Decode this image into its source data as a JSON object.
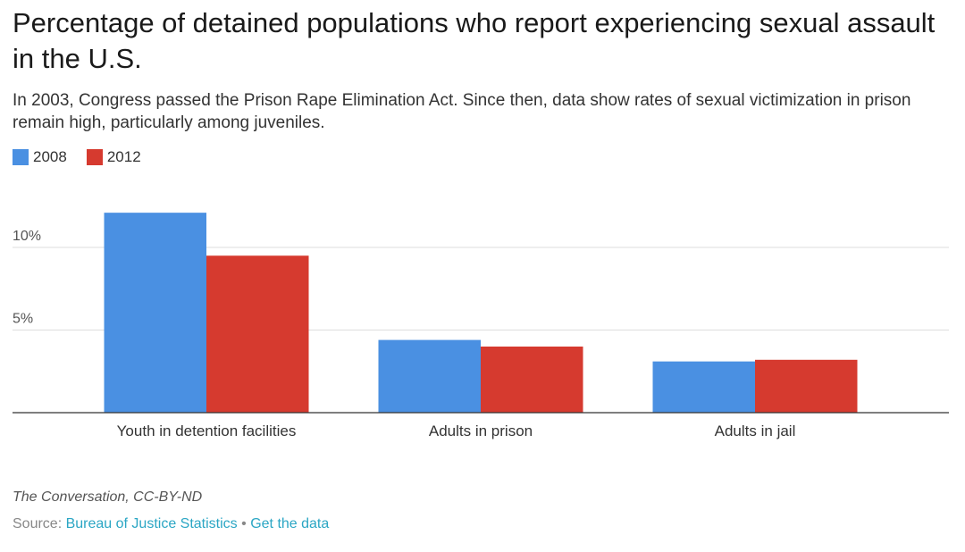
{
  "title": "Percentage of detained populations who report experiencing sexual assault in the U.S.",
  "subtitle": "In 2003, Congress passed the Prison Rape Elimination Act. Since then, data show rates of sexual victimization in prison remain high, particularly among juveniles.",
  "credit": "The Conversation, CC-BY-ND",
  "source": {
    "label": "Source:",
    "link": "Bureau of Justice Statistics",
    "separator": "•",
    "get_data": "Get the data"
  },
  "chart_data": {
    "type": "bar",
    "title": "Percentage of detained populations who report experiencing sexual assault in the U.S.",
    "xlabel": "",
    "ylabel": "",
    "categories": [
      "Youth in detention facilities",
      "Adults in prison",
      "Adults in jail"
    ],
    "series": [
      {
        "name": "2008",
        "color": "#4a90e2",
        "values": [
          12.1,
          4.4,
          3.1
        ]
      },
      {
        "name": "2012",
        "color": "#d63a2f",
        "values": [
          9.5,
          4.0,
          3.2
        ]
      }
    ],
    "yticks": [
      {
        "value": 5,
        "label": "5%"
      },
      {
        "value": 10,
        "label": "10%"
      }
    ],
    "ylim": [
      0,
      13
    ],
    "grid": true,
    "legend": "top-left"
  }
}
